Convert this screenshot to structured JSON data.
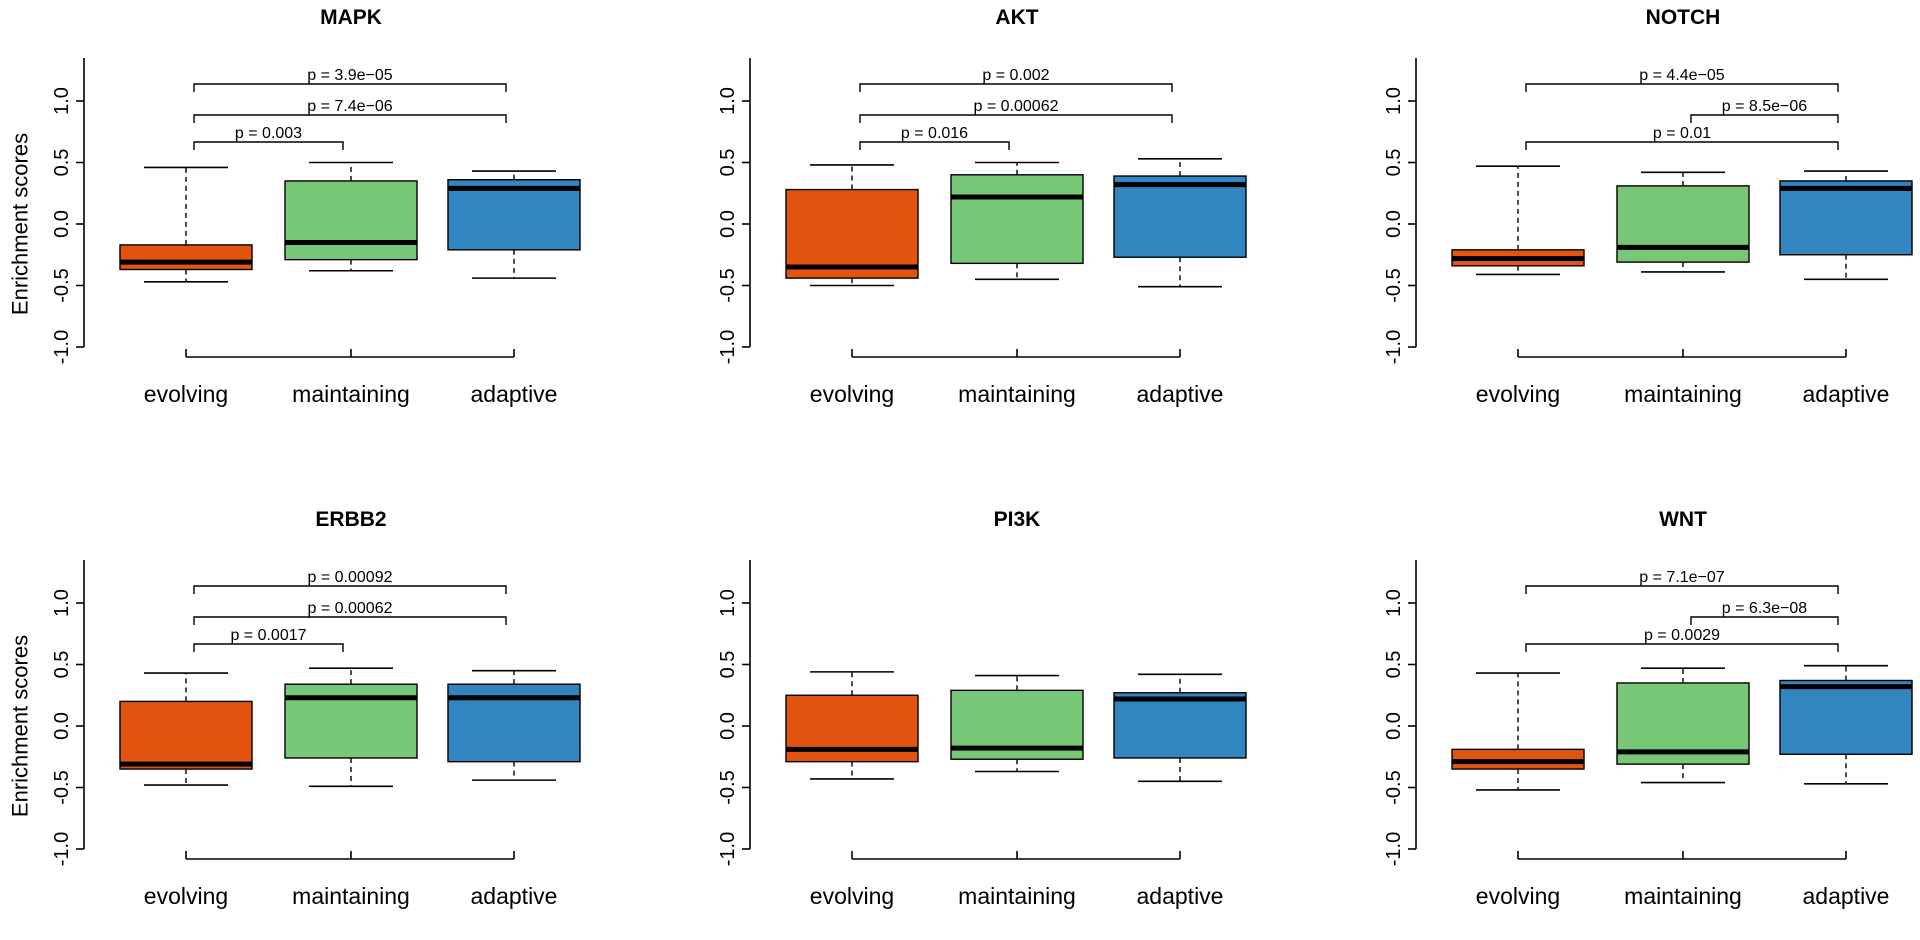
{
  "figure": {
    "ylabel": "Enrichment scores",
    "categories": [
      "evolving",
      "maintaining",
      "adaptive"
    ],
    "colors": [
      "#E35410",
      "#77C777",
      "#3385C0"
    ]
  },
  "chart_data": [
    {
      "type": "boxplot",
      "title": "MAPK",
      "ylabel": "Enrichment scores",
      "ylim": [
        -1.0,
        1.0
      ],
      "yticks": [
        "-1.0",
        "-0.5",
        "0.0",
        "0.5",
        "1.0"
      ],
      "categories": [
        "evolving",
        "maintaining",
        "adaptive"
      ],
      "boxes": [
        {
          "min": -0.47,
          "q1": -0.37,
          "median": -0.31,
          "q3": -0.17,
          "max": 0.46
        },
        {
          "min": -0.38,
          "q1": -0.29,
          "median": -0.15,
          "q3": 0.35,
          "max": 0.5
        },
        {
          "min": -0.44,
          "q1": -0.21,
          "median": 0.29,
          "q3": 0.36,
          "max": 0.43
        }
      ],
      "comparisons": [
        {
          "from": 0,
          "to": 1,
          "label": "p = 0.003"
        },
        {
          "from": 0,
          "to": 2,
          "label": "p = 7.4e−06"
        },
        {
          "from": 0,
          "to": 2,
          "label": "p = 3.9e−05"
        }
      ]
    },
    {
      "type": "boxplot",
      "title": "AKT",
      "ylabel": "",
      "ylim": [
        -1.0,
        1.0
      ],
      "yticks": [
        "-1.0",
        "-0.5",
        "0.0",
        "0.5",
        "1.0"
      ],
      "categories": [
        "evolving",
        "maintaining",
        "adaptive"
      ],
      "boxes": [
        {
          "min": -0.5,
          "q1": -0.44,
          "median": -0.35,
          "q3": 0.28,
          "max": 0.48
        },
        {
          "min": -0.45,
          "q1": -0.32,
          "median": 0.22,
          "q3": 0.4,
          "max": 0.5
        },
        {
          "min": -0.51,
          "q1": -0.27,
          "median": 0.32,
          "q3": 0.39,
          "max": 0.53
        }
      ],
      "comparisons": [
        {
          "from": 0,
          "to": 1,
          "label": "p = 0.016"
        },
        {
          "from": 0,
          "to": 2,
          "label": "p = 0.00062"
        },
        {
          "from": 0,
          "to": 2,
          "label": "p = 0.002"
        }
      ]
    },
    {
      "type": "boxplot",
      "title": "NOTCH",
      "ylabel": "",
      "ylim": [
        -1.0,
        1.0
      ],
      "yticks": [
        "-1.0",
        "-0.5",
        "0.0",
        "0.5",
        "1.0"
      ],
      "categories": [
        "evolving",
        "maintaining",
        "adaptive"
      ],
      "boxes": [
        {
          "min": -0.41,
          "q1": -0.34,
          "median": -0.28,
          "q3": -0.21,
          "max": 0.47
        },
        {
          "min": -0.39,
          "q1": -0.31,
          "median": -0.19,
          "q3": 0.31,
          "max": 0.42
        },
        {
          "min": -0.45,
          "q1": -0.25,
          "median": 0.29,
          "q3": 0.35,
          "max": 0.43
        }
      ],
      "comparisons": [
        {
          "from": 0,
          "to": 2,
          "label": "p = 0.01"
        },
        {
          "from": 1,
          "to": 2,
          "label": "p = 8.5e−06"
        },
        {
          "from": 0,
          "to": 2,
          "label": "p = 4.4e−05"
        }
      ]
    },
    {
      "type": "boxplot",
      "title": "ERBB2",
      "ylabel": "Enrichment scores",
      "ylim": [
        -1.0,
        1.0
      ],
      "yticks": [
        "-1.0",
        "-0.5",
        "0.0",
        "0.5",
        "1.0"
      ],
      "categories": [
        "evolving",
        "maintaining",
        "adaptive"
      ],
      "boxes": [
        {
          "min": -0.48,
          "q1": -0.35,
          "median": -0.31,
          "q3": 0.2,
          "max": 0.43
        },
        {
          "min": -0.49,
          "q1": -0.26,
          "median": 0.23,
          "q3": 0.34,
          "max": 0.47
        },
        {
          "min": -0.44,
          "q1": -0.29,
          "median": 0.23,
          "q3": 0.34,
          "max": 0.45
        }
      ],
      "comparisons": [
        {
          "from": 0,
          "to": 1,
          "label": "p = 0.0017"
        },
        {
          "from": 0,
          "to": 2,
          "label": "p = 0.00062"
        },
        {
          "from": 0,
          "to": 2,
          "label": "p = 0.00092"
        }
      ]
    },
    {
      "type": "boxplot",
      "title": "PI3K",
      "ylabel": "",
      "ylim": [
        -1.0,
        1.0
      ],
      "yticks": [
        "-1.0",
        "-0.5",
        "0.0",
        "0.5",
        "1.0"
      ],
      "categories": [
        "evolving",
        "maintaining",
        "adaptive"
      ],
      "boxes": [
        {
          "min": -0.43,
          "q1": -0.29,
          "median": -0.19,
          "q3": 0.25,
          "max": 0.44
        },
        {
          "min": -0.37,
          "q1": -0.27,
          "median": -0.18,
          "q3": 0.29,
          "max": 0.41
        },
        {
          "min": -0.45,
          "q1": -0.26,
          "median": 0.22,
          "q3": 0.27,
          "max": 0.42
        }
      ],
      "comparisons": []
    },
    {
      "type": "boxplot",
      "title": "WNT",
      "ylabel": "",
      "ylim": [
        -1.0,
        1.0
      ],
      "yticks": [
        "-1.0",
        "-0.5",
        "0.0",
        "0.5",
        "1.0"
      ],
      "categories": [
        "evolving",
        "maintaining",
        "adaptive"
      ],
      "boxes": [
        {
          "min": -0.52,
          "q1": -0.35,
          "median": -0.29,
          "q3": -0.19,
          "max": 0.43
        },
        {
          "min": -0.46,
          "q1": -0.31,
          "median": -0.21,
          "q3": 0.35,
          "max": 0.47
        },
        {
          "min": -0.47,
          "q1": -0.23,
          "median": 0.32,
          "q3": 0.37,
          "max": 0.49
        }
      ],
      "comparisons": [
        {
          "from": 0,
          "to": 2,
          "label": "p = 0.0029"
        },
        {
          "from": 1,
          "to": 2,
          "label": "p = 6.3e−08"
        },
        {
          "from": 0,
          "to": 2,
          "label": "p = 7.1e−07"
        }
      ]
    }
  ]
}
